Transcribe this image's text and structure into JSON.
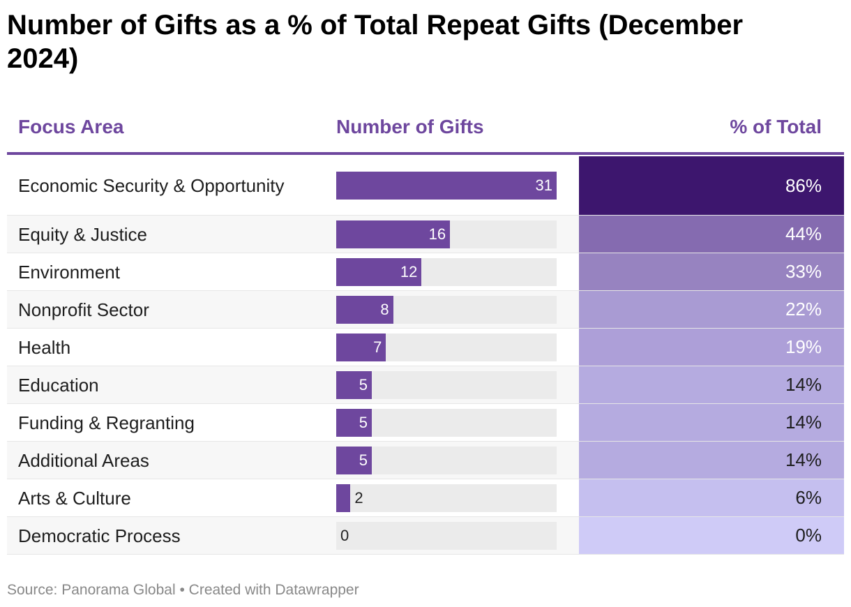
{
  "chart_data": {
    "type": "table",
    "title": "Number of Gifts as a % of Total Repeat Gifts (December 2024)",
    "columns": [
      "Focus Area",
      "Number of Gifts",
      "% of Total"
    ],
    "bar_max": 31,
    "rows": [
      {
        "area": "Economic Security & Opportunity",
        "gifts": 31,
        "pct": "86%",
        "color": "#3d166e",
        "light": true
      },
      {
        "area": "Equity & Justice",
        "gifts": 16,
        "pct": "44%",
        "color": "#856bb0",
        "light": true
      },
      {
        "area": "Environment",
        "gifts": 12,
        "pct": "33%",
        "color": "#9783c0",
        "light": true
      },
      {
        "area": "Nonprofit Sector",
        "gifts": 8,
        "pct": "22%",
        "color": "#a99bd3",
        "light": true
      },
      {
        "area": "Health",
        "gifts": 7,
        "pct": "19%",
        "color": "#ad9fd8",
        "light": true
      },
      {
        "area": "Education",
        "gifts": 5,
        "pct": "14%",
        "color": "#b5abe0",
        "light": false
      },
      {
        "area": "Funding & Regranting",
        "gifts": 5,
        "pct": "14%",
        "color": "#b5abe0",
        "light": false
      },
      {
        "area": "Additional Areas",
        "gifts": 5,
        "pct": "14%",
        "color": "#b5abe0",
        "light": false
      },
      {
        "area": "Arts & Culture",
        "gifts": 2,
        "pct": "6%",
        "color": "#c5bfef",
        "light": false
      },
      {
        "area": "Democratic Process",
        "gifts": 0,
        "pct": "0%",
        "color": "#cfcbf7",
        "light": false
      }
    ],
    "bar_color": "#6e479e"
  },
  "footer": "Source: Panorama Global • Created with Datawrapper"
}
